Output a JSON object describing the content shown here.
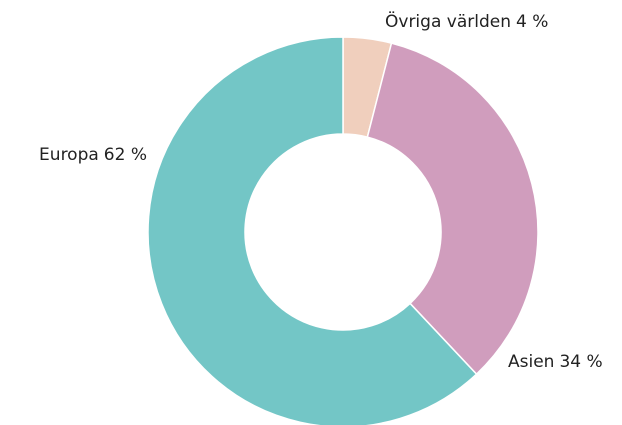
{
  "chart_data": {
    "type": "donut",
    "categories": [
      "Övriga världen",
      "Asien",
      "Europa"
    ],
    "values": [
      4,
      34,
      62
    ],
    "value_labels": [
      "4 %",
      "34 %",
      "62 %"
    ],
    "colors": [
      "#f0cfbd",
      "#d09dbd",
      "#73c6c6"
    ]
  }
}
